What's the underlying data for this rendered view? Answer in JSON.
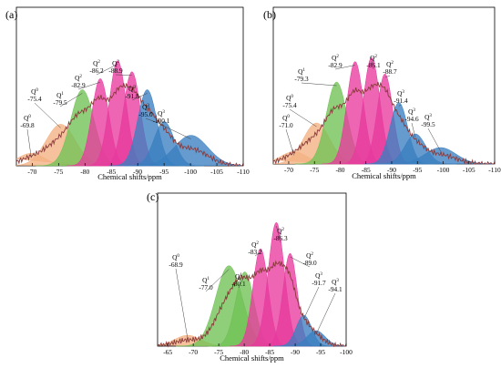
{
  "chart_data": [
    {
      "panel": "(a)",
      "type": "area",
      "xlabel": "Chemical shifts/ppm",
      "xlim": [
        -67,
        -110
      ],
      "xticks": [
        -70,
        -75,
        -80,
        -85,
        -90,
        -95,
        -100,
        -105,
        -110
      ],
      "xtick_labels": [
        "-70",
        "-75",
        "-80",
        "-85",
        "-90",
        "-95",
        "-100",
        "-105",
        "-110"
      ],
      "series": [
        {
          "name": "Q0",
          "center": -69.8,
          "height": 0.09,
          "width": 2.6,
          "color": "#f4b183"
        },
        {
          "name": "Q0",
          "center": -75.4,
          "height": 0.3,
          "width": 2.8,
          "color": "#f4b183"
        },
        {
          "name": "Q1",
          "center": -79.5,
          "height": 0.55,
          "width": 2.2,
          "color": "#70c155"
        },
        {
          "name": "Q2",
          "center": -82.9,
          "height": 0.63,
          "width": 1.6,
          "color": "#e83a9e"
        },
        {
          "name": "Q2",
          "center": -86.2,
          "height": 0.76,
          "width": 1.6,
          "color": "#e83a9e"
        },
        {
          "name": "Q2",
          "center": -88.9,
          "height": 0.68,
          "width": 1.6,
          "color": "#e83a9e"
        },
        {
          "name": "Q3",
          "center": -91.8,
          "height": 0.55,
          "width": 1.8,
          "color": "#3a7fc0"
        },
        {
          "name": "Q3",
          "center": -95.0,
          "height": 0.32,
          "width": 1.9,
          "color": "#3a7fc0"
        },
        {
          "name": "Q3",
          "center": -100.1,
          "height": 0.22,
          "width": 3.2,
          "color": "#3a7fc0"
        }
      ],
      "annotations": [
        {
          "q": "Q",
          "sup": "0",
          "value": "-69.8"
        },
        {
          "q": "Q",
          "sup": "0",
          "value": "-75.4"
        },
        {
          "q": "Q",
          "sup": "1",
          "value": "-79.5"
        },
        {
          "q": "Q",
          "sup": "2",
          "value": "-82.9"
        },
        {
          "q": "Q",
          "sup": "2",
          "value": "-86.2"
        },
        {
          "q": "Q",
          "sup": "2",
          "value": "-88.9"
        },
        {
          "q": "Q",
          "sup": "3",
          "value": "-91.8"
        },
        {
          "q": "Q",
          "sup": "3",
          "value": "-95.0"
        },
        {
          "q": "Q",
          "sup": "3",
          "value": "-100.1"
        }
      ]
    },
    {
      "panel": "(b)",
      "type": "area",
      "xlabel": "Chemical shifts/ppm",
      "xlim": [
        -67,
        -110
      ],
      "xticks": [
        -70,
        -75,
        -80,
        -85,
        -90,
        -95,
        -100,
        -105,
        -110
      ],
      "xtick_labels": [
        "-70",
        "-75",
        "-80",
        "-85",
        "-90",
        "-95",
        "-100",
        "-105",
        "-110"
      ],
      "series": [
        {
          "name": "Q0",
          "center": -71.0,
          "height": 0.09,
          "width": 2.6,
          "color": "#f4b183"
        },
        {
          "name": "Q0",
          "center": -75.4,
          "height": 0.3,
          "width": 2.6,
          "color": "#f4b183"
        },
        {
          "name": "Q1",
          "center": -79.3,
          "height": 0.6,
          "width": 2.0,
          "color": "#70c155"
        },
        {
          "name": "Q2",
          "center": -82.9,
          "height": 0.75,
          "width": 1.6,
          "color": "#e83a9e"
        },
        {
          "name": "Q2",
          "center": -86.1,
          "height": 0.78,
          "width": 1.6,
          "color": "#e83a9e"
        },
        {
          "name": "Q2",
          "center": -88.7,
          "height": 0.66,
          "width": 1.5,
          "color": "#e83a9e"
        },
        {
          "name": "Q3",
          "center": -91.4,
          "height": 0.45,
          "width": 1.7,
          "color": "#3a7fc0"
        },
        {
          "name": "Q3",
          "center": -94.6,
          "height": 0.22,
          "width": 2.0,
          "color": "#3a7fc0"
        },
        {
          "name": "Q3",
          "center": -99.5,
          "height": 0.12,
          "width": 3.0,
          "color": "#3a7fc0"
        }
      ],
      "annotations": [
        {
          "q": "Q",
          "sup": "0",
          "value": "-71.0"
        },
        {
          "q": "Q",
          "sup": "0",
          "value": "-75.4"
        },
        {
          "q": "Q",
          "sup": "1",
          "value": "-79.3"
        },
        {
          "q": "Q",
          "sup": "2",
          "value": "-82.9"
        },
        {
          "q": "Q",
          "sup": "2",
          "value": "-86.1"
        },
        {
          "q": "Q",
          "sup": "2",
          "value": "-88.7"
        },
        {
          "q": "Q",
          "sup": "3",
          "value": "-91.4"
        },
        {
          "q": "Q",
          "sup": "3",
          "value": "-94.6"
        },
        {
          "q": "Q",
          "sup": "3",
          "value": "-99.5"
        }
      ]
    },
    {
      "panel": "(c)",
      "type": "area",
      "xlabel": "Chemical shifts/ppm",
      "xlim": [
        -63,
        -100
      ],
      "xticks": [
        -65,
        -70,
        -75,
        -80,
        -85,
        -90,
        -95,
        -100
      ],
      "xtick_labels": [
        "-65",
        "-70",
        "-75",
        "-80",
        "-85",
        "-90",
        "-95",
        "-100"
      ],
      "series": [
        {
          "name": "Q0",
          "center": -68.9,
          "height": 0.07,
          "width": 2.6,
          "color": "#f4b183"
        },
        {
          "name": "Q1",
          "center": -77.0,
          "height": 0.52,
          "width": 2.6,
          "color": "#70c155"
        },
        {
          "name": "Q1",
          "center": -80.1,
          "height": 0.48,
          "width": 1.8,
          "color": "#70c155"
        },
        {
          "name": "Q2",
          "center": -83.2,
          "height": 0.63,
          "width": 1.5,
          "color": "#e83a9e"
        },
        {
          "name": "Q2",
          "center": -86.3,
          "height": 0.8,
          "width": 1.6,
          "color": "#e83a9e"
        },
        {
          "name": "Q2",
          "center": -89.0,
          "height": 0.6,
          "width": 1.4,
          "color": "#e83a9e"
        },
        {
          "name": "Q3",
          "center": -91.7,
          "height": 0.2,
          "width": 1.5,
          "color": "#3a7fc0"
        },
        {
          "name": "Q3",
          "center": -94.1,
          "height": 0.1,
          "width": 1.8,
          "color": "#3a7fc0"
        }
      ],
      "annotations": [
        {
          "q": "Q",
          "sup": "0",
          "value": "-68.9"
        },
        {
          "q": "Q",
          "sup": "1",
          "value": "-77.0"
        },
        {
          "q": "Q",
          "sup": "1",
          "value": "-80.1"
        },
        {
          "q": "Q",
          "sup": "2",
          "value": "-83.2"
        },
        {
          "q": "Q",
          "sup": "2",
          "value": "-86.3"
        },
        {
          "q": "Q",
          "sup": "2",
          "value": "-89.0"
        },
        {
          "q": "Q",
          "sup": "3",
          "value": "-91.7"
        },
        {
          "q": "Q",
          "sup": "3",
          "value": "-94.1"
        }
      ]
    }
  ]
}
